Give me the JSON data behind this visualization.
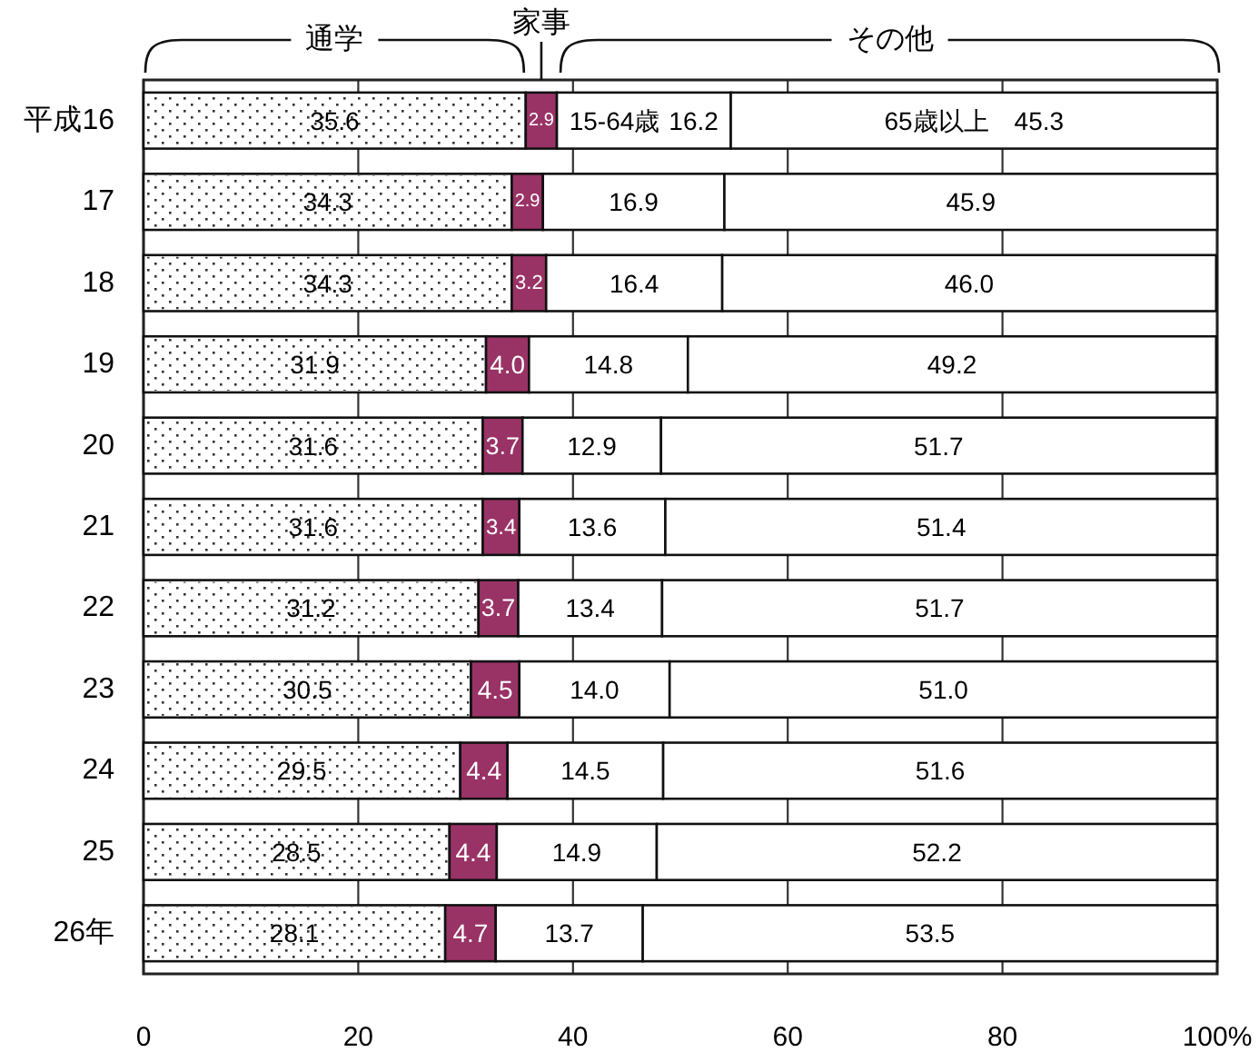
{
  "chart_data": {
    "type": "bar",
    "orientation": "horizontal",
    "stacked": true,
    "categories": [
      "平成16",
      "17",
      "18",
      "19",
      "20",
      "21",
      "22",
      "23",
      "24",
      "25",
      "26年"
    ],
    "series": [
      {
        "name": "通学",
        "color": "#ffffff",
        "values": [
          35.6,
          34.3,
          34.3,
          31.9,
          31.6,
          31.6,
          31.2,
          30.5,
          29.5,
          28.5,
          28.1
        ],
        "value_labels": [
          "35.6",
          "34.3",
          "34.3",
          "31.9",
          "31.6",
          "31.6",
          "31.2",
          "30.5",
          "29.5",
          "28.5",
          "28.1"
        ]
      },
      {
        "name": "家事",
        "color": "#993366",
        "values": [
          2.9,
          2.9,
          3.2,
          4.0,
          3.7,
          3.4,
          3.7,
          4.5,
          4.4,
          4.4,
          4.7
        ],
        "value_labels": [
          "2.9",
          "2.9",
          "3.2",
          "4.0",
          "3.7",
          "3.4",
          "3.7",
          "4.5",
          "4.4",
          "4.4",
          "4.7"
        ]
      },
      {
        "name": "15-64歳",
        "color": "#ffffff",
        "values": [
          16.2,
          16.9,
          16.4,
          14.8,
          12.9,
          13.6,
          13.4,
          14.0,
          14.5,
          14.9,
          13.7
        ],
        "value_labels": [
          "16.2",
          "16.9",
          "16.4",
          "14.8",
          "12.9",
          "13.6",
          "13.4",
          "14.0",
          "14.5",
          "14.9",
          "13.7"
        ]
      },
      {
        "name": "65歳以上",
        "color": "#ffffff",
        "values": [
          45.3,
          45.9,
          46.0,
          49.2,
          51.7,
          51.4,
          51.7,
          51.0,
          51.6,
          52.2,
          53.5
        ],
        "value_labels": [
          "45.3",
          "45.9",
          "46.0",
          "49.2",
          "51.7",
          "51.4",
          "51.7",
          "51.0",
          "51.6",
          "52.2",
          "53.5"
        ]
      }
    ],
    "xlim": [
      0,
      100
    ],
    "xticks": [
      0,
      20,
      40,
      60,
      80,
      {
        "value": 100,
        "label": "100%"
      }
    ],
    "grid": "x",
    "annotations": [
      "その他"
    ]
  }
}
